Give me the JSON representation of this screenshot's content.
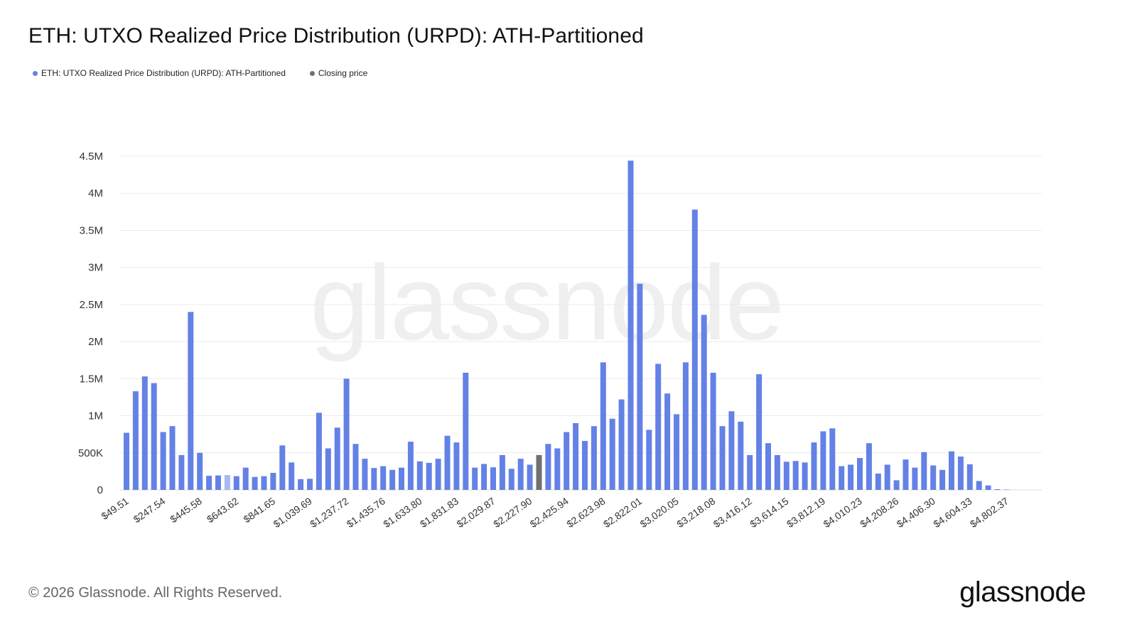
{
  "title": "ETH: UTXO Realized Price Distribution (URPD): ATH-Partitioned",
  "legend": {
    "series_label": "ETH: UTXO Realized Price Distribution (URPD): ATH-Partitioned",
    "closing_label": "Closing price"
  },
  "footer": "© 2026 Glassnode. All Rights Reserved.",
  "brand": "glassnode",
  "watermark": "glassnode",
  "colors": {
    "bar": "#6481e6",
    "closing": "#707070",
    "faded": "#a8b8f0",
    "grid": "#ebebeb"
  },
  "chart_data": {
    "type": "bar",
    "title": "ETH: UTXO Realized Price Distribution (URPD): ATH-Partitioned",
    "ylim": [
      0,
      4500000
    ],
    "yticks": [
      {
        "value": 0,
        "label": "0"
      },
      {
        "value": 500000,
        "label": "500K"
      },
      {
        "value": 1000000,
        "label": "1M"
      },
      {
        "value": 1500000,
        "label": "1.5M"
      },
      {
        "value": 2000000,
        "label": "2M"
      },
      {
        "value": 2500000,
        "label": "2.5M"
      },
      {
        "value": 3000000,
        "label": "3M"
      },
      {
        "value": 3500000,
        "label": "3.5M"
      },
      {
        "value": 4000000,
        "label": "4M"
      },
      {
        "value": 4500000,
        "label": "4.5M"
      }
    ],
    "xtick_labels": [
      {
        "index": 0,
        "label": "$49.51"
      },
      {
        "index": 4,
        "label": "$247.54"
      },
      {
        "index": 8,
        "label": "$445.58"
      },
      {
        "index": 12,
        "label": "$643.62"
      },
      {
        "index": 16,
        "label": "$841.65"
      },
      {
        "index": 20,
        "label": "$1,039.69"
      },
      {
        "index": 24,
        "label": "$1,237.72"
      },
      {
        "index": 28,
        "label": "$1,435.76"
      },
      {
        "index": 32,
        "label": "$1,633.80"
      },
      {
        "index": 36,
        "label": "$1,831.83"
      },
      {
        "index": 40,
        "label": "$2,029.87"
      },
      {
        "index": 44,
        "label": "$2,227.90"
      },
      {
        "index": 48,
        "label": "$2,425.94"
      },
      {
        "index": 52,
        "label": "$2,623.98"
      },
      {
        "index": 56,
        "label": "$2,822.01"
      },
      {
        "index": 60,
        "label": "$3,020.05"
      },
      {
        "index": 64,
        "label": "$3,218.08"
      },
      {
        "index": 68,
        "label": "$3,416.12"
      },
      {
        "index": 72,
        "label": "$3,614.15"
      },
      {
        "index": 76,
        "label": "$3,812.19"
      },
      {
        "index": 80,
        "label": "$4,010.23"
      },
      {
        "index": 84,
        "label": "$4,208.26"
      },
      {
        "index": 88,
        "label": "$4,406.30"
      },
      {
        "index": 92,
        "label": "$4,604.33"
      },
      {
        "index": 96,
        "label": "$4,802.37"
      }
    ],
    "closing_price_index": 45,
    "faded_indices": [
      11
    ],
    "series": [
      {
        "name": "ETH: UTXO Realized Price Distribution (URPD): ATH-Partitioned",
        "values": [
          770000,
          1330000,
          1530000,
          1440000,
          780000,
          860000,
          470000,
          2400000,
          500000,
          190000,
          195000,
          200000,
          185000,
          300000,
          175000,
          185000,
          230000,
          600000,
          370000,
          145000,
          150000,
          1040000,
          560000,
          840000,
          1500000,
          620000,
          420000,
          295000,
          320000,
          270000,
          300000,
          650000,
          385000,
          365000,
          420000,
          730000,
          640000,
          1580000,
          300000,
          350000,
          305000,
          470000,
          285000,
          420000,
          340000,
          470000,
          620000,
          560000,
          780000,
          900000,
          660000,
          860000,
          1720000,
          960000,
          1220000,
          4440000,
          2780000,
          810000,
          1700000,
          1300000,
          1020000,
          1720000,
          3780000,
          2360000,
          1580000,
          860000,
          1060000,
          920000,
          470000,
          1560000,
          630000,
          470000,
          380000,
          390000,
          370000,
          640000,
          790000,
          830000,
          320000,
          340000,
          430000,
          630000,
          220000,
          340000,
          130000,
          410000,
          300000,
          510000,
          330000,
          270000,
          520000,
          450000,
          345000,
          120000,
          60000,
          10000,
          5000
        ]
      }
    ]
  }
}
